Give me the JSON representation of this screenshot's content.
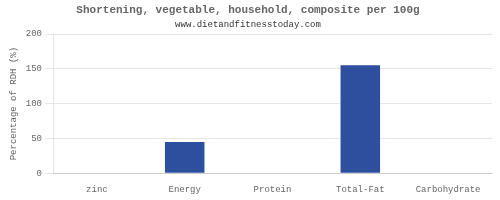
{
  "chart_data": {
    "type": "bar",
    "title": "Shortening, vegetable, household, composite per 100g",
    "subtitle": "www.dietandfitnesstoday.com",
    "categories": [
      "zinc",
      "Energy",
      "Protein",
      "Total-Fat",
      "Carbohydrate"
    ],
    "values": [
      0,
      45,
      0,
      155,
      0
    ],
    "color": "#2e4f9e",
    "ylim": [
      0,
      200
    ],
    "yticks": [
      0,
      50,
      100,
      150,
      200
    ],
    "ylabel": "Percentage of RDH (%)",
    "grid": true
  }
}
